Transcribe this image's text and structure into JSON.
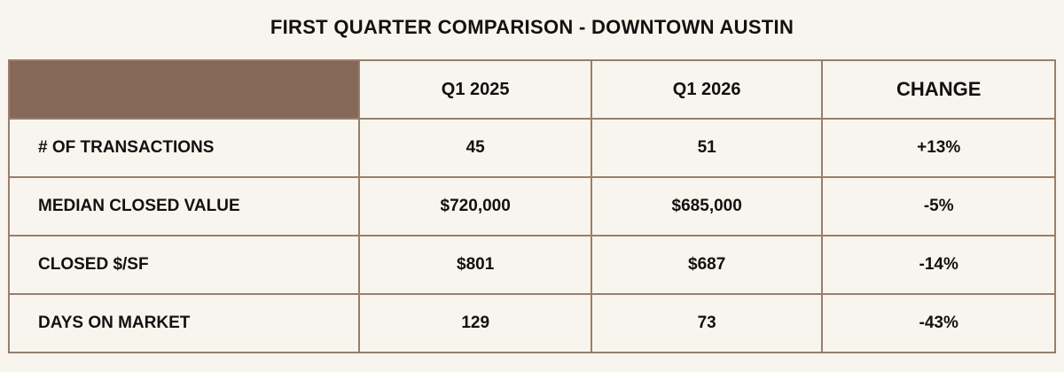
{
  "title": "FIRST QUARTER COMPARISON - DOWNTOWN AUSTIN",
  "colors": {
    "header_fill": "#856858",
    "border": "#9a7e6c",
    "background": "#f8f5ee"
  },
  "columns": [
    "",
    "Q1 2025",
    "Q1 2026",
    "CHANGE"
  ],
  "rows": [
    {
      "label": "# OF TRANSACTIONS",
      "q1_2025": "45",
      "q1_2026": "51",
      "change": "+13%"
    },
    {
      "label": "MEDIAN CLOSED VALUE",
      "q1_2025": "$720,000",
      "q1_2026": "$685,000",
      "change": "-5%"
    },
    {
      "label": "CLOSED $/SF",
      "q1_2025": "$801",
      "q1_2026": "$687",
      "change": "-14%"
    },
    {
      "label": "DAYS ON MARKET",
      "q1_2025": "129",
      "q1_2026": "73",
      "change": "-43%"
    }
  ]
}
